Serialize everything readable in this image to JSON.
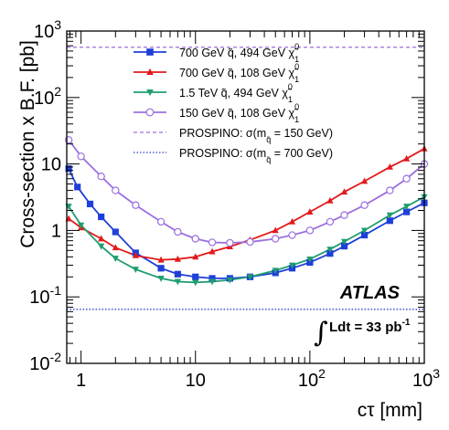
{
  "chart_data": {
    "type": "line",
    "title": "",
    "xlabel": "cτ [mm]",
    "ylabel": "Cross-section x B.F. [pb]",
    "xscale": "log",
    "yscale": "log",
    "xlim": [
      0.75,
      1000
    ],
    "ylim": [
      0.01,
      1000
    ],
    "x_ticks": [
      {
        "value": 1,
        "label": "1"
      },
      {
        "value": 10,
        "label": "10"
      },
      {
        "value": 100,
        "label": "10",
        "exp": "2"
      },
      {
        "value": 1000,
        "label": "10",
        "exp": "3"
      }
    ],
    "y_ticks": [
      {
        "value": 0.01,
        "label": "10",
        "exp": "-2"
      },
      {
        "value": 0.1,
        "label": "10",
        "exp": "-1"
      },
      {
        "value": 1,
        "label": "1"
      },
      {
        "value": 10,
        "label": "10"
      },
      {
        "value": 100,
        "label": "10",
        "exp": "2"
      },
      {
        "value": 1000,
        "label": "10",
        "exp": "3"
      }
    ],
    "grid": false,
    "legend_position": "top-right",
    "series": [
      {
        "legend_main": "700 GeV q̃, 494 GeV χ̃",
        "legend_sup": "0",
        "legend_sub": "1",
        "color": "#1f3fd9",
        "marker": "square",
        "x": [
          0.78,
          0.93,
          1.2,
          1.5,
          2.0,
          3.0,
          5.0,
          7.0,
          10,
          14,
          20,
          30,
          50,
          70,
          100,
          150,
          200,
          300,
          500,
          700,
          1000
        ],
        "y": [
          8.5,
          4.5,
          2.5,
          1.6,
          0.95,
          0.46,
          0.27,
          0.22,
          0.2,
          0.19,
          0.19,
          0.2,
          0.23,
          0.27,
          0.33,
          0.45,
          0.58,
          0.85,
          1.4,
          1.9,
          2.6
        ]
      },
      {
        "legend_main": "700 GeV q̃, 108 GeV χ̃",
        "legend_sup": "0",
        "legend_sub": "1",
        "color": "#e31a1c",
        "marker": "triangle-up",
        "x": [
          0.78,
          1.0,
          1.5,
          2.0,
          3.0,
          5.0,
          7.0,
          10,
          14,
          20,
          30,
          50,
          70,
          100,
          150,
          200,
          300,
          500,
          700,
          1000
        ],
        "y": [
          1.5,
          1.1,
          0.75,
          0.55,
          0.42,
          0.36,
          0.37,
          0.4,
          0.48,
          0.57,
          0.72,
          1.0,
          1.35,
          1.9,
          2.8,
          3.8,
          5.5,
          9.0,
          12,
          17
        ]
      },
      {
        "legend_main": "1.5 TeV q̃, 494 GeV χ̃",
        "legend_sup": "0",
        "legend_sub": "1",
        "color": "#1f9e6e",
        "marker": "triangle-down",
        "x": [
          0.78,
          1.0,
          1.5,
          2.0,
          3.0,
          5.0,
          7.0,
          10,
          14,
          20,
          30,
          50,
          70,
          100,
          150,
          200,
          300,
          500,
          700,
          1000
        ],
        "y": [
          2.3,
          1.2,
          0.58,
          0.38,
          0.26,
          0.19,
          0.17,
          0.165,
          0.17,
          0.18,
          0.2,
          0.25,
          0.3,
          0.37,
          0.52,
          0.68,
          1.0,
          1.7,
          2.3,
          3.2
        ]
      },
      {
        "legend_main": "150 GeV q̃, 108 GeV χ̃",
        "legend_sup": "0",
        "legend_sub": "1",
        "color": "#9b6fe0",
        "marker": "circle-open",
        "x": [
          0.78,
          1.0,
          1.5,
          2.0,
          3.0,
          5.0,
          7.0,
          10,
          14,
          20,
          30,
          50,
          70,
          100,
          150,
          200,
          300,
          500,
          700,
          1000
        ],
        "y": [
          23,
          13,
          6.5,
          4.0,
          2.4,
          1.35,
          0.95,
          0.75,
          0.66,
          0.65,
          0.67,
          0.75,
          0.85,
          1.0,
          1.35,
          1.7,
          2.4,
          4.0,
          6.0,
          10
        ]
      }
    ],
    "reference_lines": [
      {
        "legend_main": "PROSPINO: σ(m",
        "legend_sub": "q̃",
        "legend_tail": " = 150 GeV)",
        "y": 570,
        "color": "#9b6fe0",
        "style": "dashed"
      },
      {
        "legend_main": "PROSPINO: σ(m",
        "legend_sub": "q̃",
        "legend_tail": " = 700 GeV)",
        "y": 0.065,
        "color": "#2a3fc8",
        "style": "dotted"
      }
    ],
    "annotations": {
      "experiment": "ATLAS",
      "luminosity_main": "Ldt = 33 pb",
      "luminosity_exp": "-1",
      "integral": "∫"
    }
  }
}
